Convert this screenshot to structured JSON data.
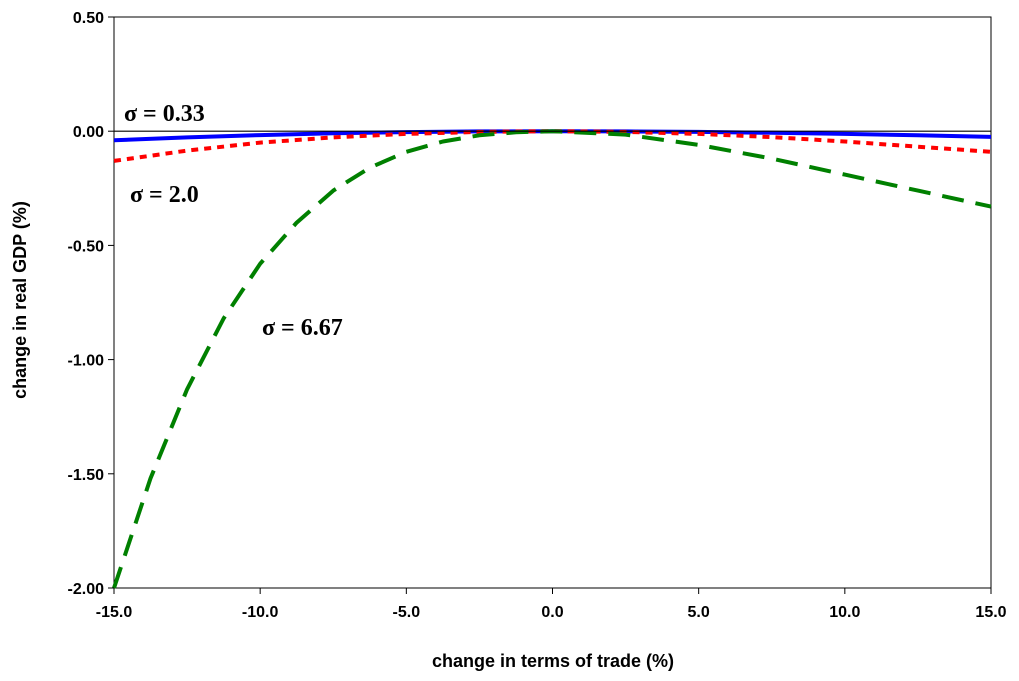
{
  "chart_data": {
    "type": "line",
    "title": "",
    "xlabel": "change in terms of trade (%)",
    "ylabel": "change in real GDP (%)",
    "xlim": [
      -15,
      15
    ],
    "ylim": [
      -2,
      0.5
    ],
    "x_ticks": [
      "-15.0",
      "-10.0",
      "-5.0",
      "0.0",
      "5.0",
      "10.0",
      "15.0"
    ],
    "x_tick_values": [
      -15,
      -10,
      -5,
      0,
      5,
      10,
      15
    ],
    "y_ticks": [
      "0.50",
      "0.00",
      "-0.50",
      "-1.00",
      "-1.50",
      "-2.00"
    ],
    "y_tick_values": [
      0.5,
      0,
      -0.5,
      -1,
      -1.5,
      -2
    ],
    "grid": false,
    "legend": "none",
    "series": [
      {
        "label": "σ = 0.33",
        "style": "solid",
        "color": "#0000ff",
        "x": [
          -15,
          -12.5,
          -10,
          -7.5,
          -5,
          -2.5,
          0,
          2.5,
          5,
          7.5,
          10,
          12.5,
          15
        ],
        "y": [
          -0.04,
          -0.027,
          -0.017,
          -0.009,
          -0.004,
          -0.001,
          0,
          -0.001,
          -0.003,
          -0.007,
          -0.012,
          -0.018,
          -0.025
        ]
      },
      {
        "label": "σ = 2.0",
        "style": "dotted",
        "color": "#ff0000",
        "x": [
          -15,
          -12.5,
          -10,
          -7.5,
          -5,
          -2.5,
          0,
          2.5,
          5,
          7.5,
          10,
          12.5,
          15
        ],
        "y": [
          -0.13,
          -0.085,
          -0.05,
          -0.027,
          -0.012,
          -0.003,
          0,
          -0.003,
          -0.012,
          -0.026,
          -0.045,
          -0.068,
          -0.09
        ]
      },
      {
        "label": "σ = 6.67",
        "style": "dashed",
        "color": "#008000",
        "x": [
          -15,
          -13.75,
          -12.5,
          -11.25,
          -10,
          -8.75,
          -7.5,
          -6.25,
          -5,
          -3.75,
          -2.5,
          -1.25,
          0,
          2.5,
          5,
          7.5,
          10,
          12.5,
          15
        ],
        "y": [
          -2.0,
          -1.52,
          -1.13,
          -0.82,
          -0.58,
          -0.4,
          -0.26,
          -0.16,
          -0.09,
          -0.045,
          -0.018,
          -0.005,
          0,
          -0.015,
          -0.06,
          -0.12,
          -0.19,
          -0.26,
          -0.33
        ]
      }
    ],
    "zero_line": 0
  }
}
